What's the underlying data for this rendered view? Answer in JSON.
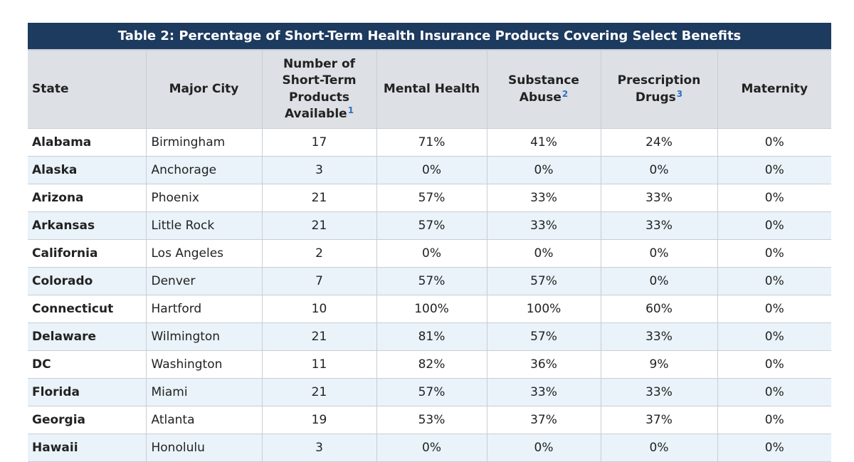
{
  "table": {
    "title": "Table 2: Percentage of Short-Term Health Insurance Products Covering Select Benefits",
    "headers": {
      "state": "State",
      "city": "Major City",
      "products_line1": "Number of",
      "products_line2": "Short-Term",
      "products_line3": "Products",
      "products_line4": "Available",
      "products_fn": "1",
      "mental": "Mental Health",
      "substance_line1": "Substance",
      "substance_line2": "Abuse",
      "substance_fn": "2",
      "rx_line1": "Prescription",
      "rx_line2": "Drugs",
      "rx_fn": "3",
      "maternity": "Maternity"
    },
    "rows": [
      {
        "state": "Alabama",
        "city": "Birmingham",
        "products": "17",
        "mental": "71%",
        "substance": "41%",
        "rx": "24%",
        "maternity": "0%"
      },
      {
        "state": "Alaska",
        "city": "Anchorage",
        "products": "3",
        "mental": "0%",
        "substance": "0%",
        "rx": "0%",
        "maternity": "0%"
      },
      {
        "state": "Arizona",
        "city": "Phoenix",
        "products": "21",
        "mental": "57%",
        "substance": "33%",
        "rx": "33%",
        "maternity": "0%"
      },
      {
        "state": "Arkansas",
        "city": "Little Rock",
        "products": "21",
        "mental": "57%",
        "substance": "33%",
        "rx": "33%",
        "maternity": "0%"
      },
      {
        "state": "California",
        "city": "Los Angeles",
        "products": "2",
        "mental": "0%",
        "substance": "0%",
        "rx": "0%",
        "maternity": "0%"
      },
      {
        "state": "Colorado",
        "city": "Denver",
        "products": "7",
        "mental": "57%",
        "substance": "57%",
        "rx": "0%",
        "maternity": "0%"
      },
      {
        "state": "Connecticut",
        "city": "Hartford",
        "products": "10",
        "mental": "100%",
        "substance": "100%",
        "rx": "60%",
        "maternity": "0%"
      },
      {
        "state": "Delaware",
        "city": "Wilmington",
        "products": "21",
        "mental": "81%",
        "substance": "57%",
        "rx": "33%",
        "maternity": "0%"
      },
      {
        "state": "DC",
        "city": "Washington",
        "products": "11",
        "mental": "82%",
        "substance": "36%",
        "rx": "9%",
        "maternity": "0%"
      },
      {
        "state": "Florida",
        "city": "Miami",
        "products": "21",
        "mental": "57%",
        "substance": "33%",
        "rx": "33%",
        "maternity": "0%"
      },
      {
        "state": "Georgia",
        "city": "Atlanta",
        "products": "19",
        "mental": "53%",
        "substance": "37%",
        "rx": "37%",
        "maternity": "0%"
      },
      {
        "state": "Hawaii",
        "city": "Honolulu",
        "products": "3",
        "mental": "0%",
        "substance": "0%",
        "rx": "0%",
        "maternity": "0%"
      }
    ]
  }
}
